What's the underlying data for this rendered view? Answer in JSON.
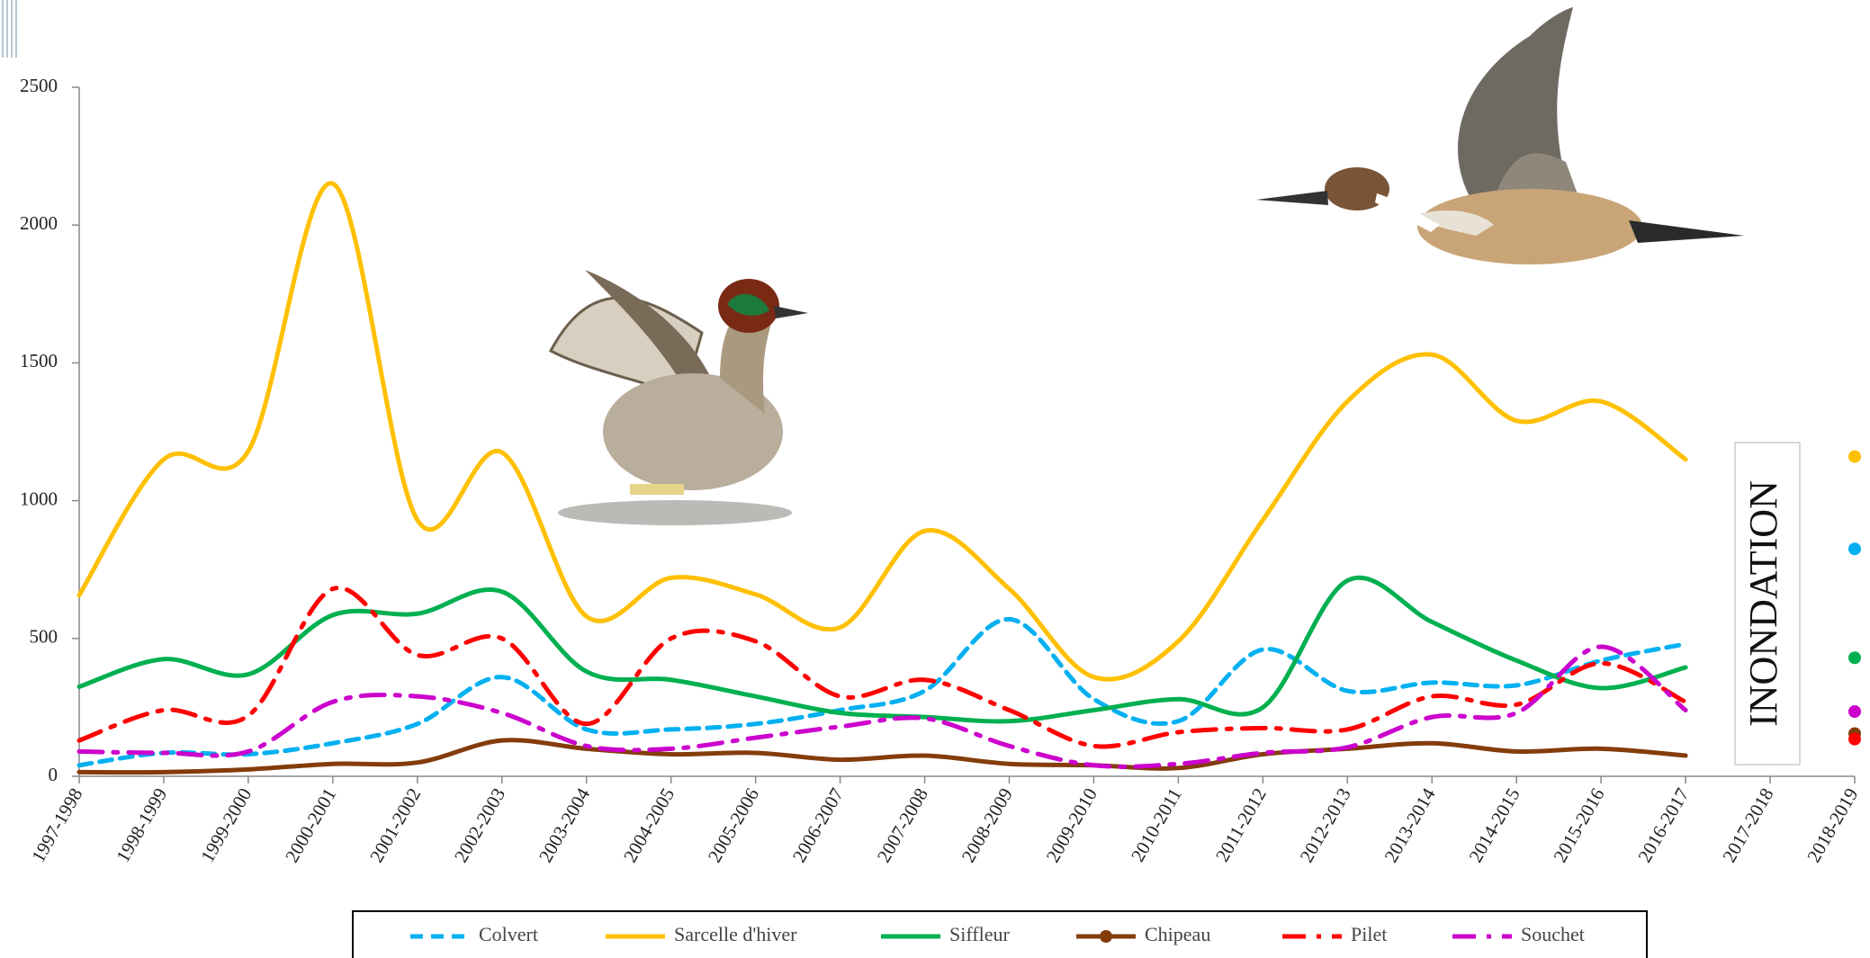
{
  "chart_data": {
    "type": "line",
    "categories": [
      "1997-1998",
      "1998-1999",
      "1999-2000",
      "2000-2001",
      "2001-2002",
      "2002-2003",
      "2003-2004",
      "2004-2005",
      "2005-2006",
      "2006-2007",
      "2007-2008",
      "2008-2009",
      "2009-2010",
      "2010-2011",
      "2011-2012",
      "2012-2013",
      "2013-2014",
      "2014-2015",
      "2015-2016",
      "2016-2017",
      "2017-2018",
      "2018-2019"
    ],
    "series": [
      {
        "name": "Colvert",
        "color": "#00b0f0",
        "dash": "dashed",
        "values": [
          40,
          85,
          80,
          120,
          190,
          360,
          170,
          170,
          190,
          240,
          310,
          570,
          280,
          200,
          460,
          310,
          340,
          330,
          420,
          480,
          null,
          825
        ]
      },
      {
        "name": "Sarcelle d'hiver",
        "color": "#ffc000",
        "dash": "solid",
        "values": [
          657,
          1150,
          1180,
          2150,
          930,
          1175,
          580,
          720,
          660,
          540,
          890,
          680,
          360,
          490,
          930,
          1360,
          1530,
          1290,
          1360,
          1150,
          null,
          1160
        ]
      },
      {
        "name": "Siffleur",
        "color": "#00b050",
        "dash": "solid",
        "values": [
          325,
          425,
          370,
          585,
          590,
          670,
          380,
          350,
          290,
          230,
          215,
          200,
          240,
          280,
          250,
          710,
          560,
          420,
          320,
          395,
          null,
          430
        ]
      },
      {
        "name": "Chipeau",
        "color": "#843c0c",
        "dash": "solid",
        "marker": true,
        "values": [
          15,
          15,
          25,
          45,
          50,
          130,
          100,
          80,
          85,
          60,
          75,
          45,
          40,
          30,
          80,
          100,
          120,
          90,
          100,
          75,
          null,
          155
        ]
      },
      {
        "name": "Pilet",
        "color": "#ff0000",
        "dash": "dash-dot",
        "values": [
          130,
          240,
          220,
          680,
          440,
          500,
          190,
          500,
          490,
          290,
          350,
          240,
          110,
          160,
          175,
          170,
          290,
          260,
          410,
          270,
          null,
          135
        ]
      },
      {
        "name": "Souchet",
        "color": "#cc00cc",
        "dash": "dash-dot",
        "values": [
          90,
          85,
          90,
          270,
          290,
          230,
          110,
          100,
          140,
          180,
          210,
          110,
          40,
          45,
          85,
          105,
          215,
          230,
          470,
          240,
          null,
          235
        ]
      }
    ],
    "ylim": [
      0,
      2500
    ],
    "yticks": [
      0,
      500,
      1000,
      1500,
      2000,
      2500
    ],
    "annotation": "INONDATION",
    "smooth": true,
    "grid": false
  }
}
